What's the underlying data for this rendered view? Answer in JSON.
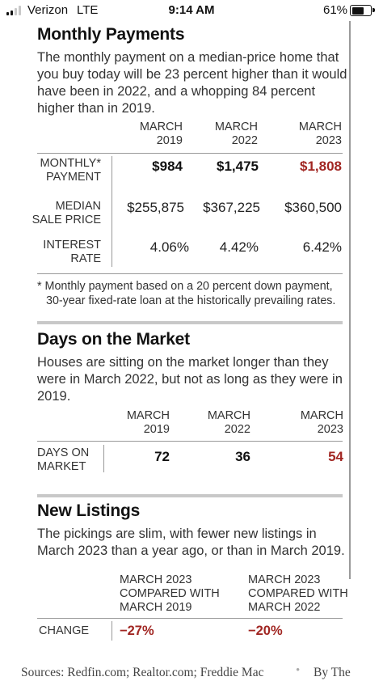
{
  "status_bar": {
    "carrier": "Verizon",
    "network": "LTE",
    "time": "9:14 AM",
    "battery": "61%",
    "battery_level": 0.61,
    "signal_bars": 2
  },
  "monthly": {
    "title": "Monthly Payments",
    "description": "The monthly payment on a median-price home that you buy today will be 23 percent higher than it would have been in 2022, and a whopping 84 percent higher than in 2019.",
    "columns": [
      {
        "line1": "MARCH",
        "line2": "2019"
      },
      {
        "line1": "MARCH",
        "line2": "2022"
      },
      {
        "line1": "MARCH",
        "line2": "2023"
      }
    ],
    "rows": [
      {
        "line1": "MONTHLY*",
        "line2": "PAYMENT",
        "values": [
          "$984",
          "$1,475",
          "$1,808"
        ]
      },
      {
        "line1": "MEDIAN",
        "line2": "SALE PRICE",
        "values": [
          "$255,875",
          "$367,225",
          "$360,500"
        ]
      },
      {
        "line1": "INTEREST",
        "line2": "RATE",
        "values": [
          "4.06%",
          "4.42%",
          "6.42%"
        ]
      }
    ],
    "footnote_line1": "* Monthly payment based on a 20 percent down payment,",
    "footnote_line2": "30-year fixed-rate loan at the historically prevailing rates."
  },
  "days": {
    "title": "Days on the Market",
    "description": "Houses are sitting on the market longer than they were in March 2022, but not as long as they were in 2019.",
    "columns": [
      {
        "line1": "MARCH",
        "line2": "2019"
      },
      {
        "line1": "MARCH",
        "line2": "2022"
      },
      {
        "line1": "MARCH",
        "line2": "2023"
      }
    ],
    "row": {
      "line1": "DAYS ON",
      "line2": "MARKET",
      "values": [
        "72",
        "36",
        "54"
      ]
    }
  },
  "listings": {
    "title": "New Listings",
    "description": "The pickings are slim, with fewer new listings in March 2023 than a year ago, or than in March 2019.",
    "columns": [
      {
        "line1": "MARCH 2023",
        "line2": "COMPARED WITH",
        "line3": "MARCH 2019"
      },
      {
        "line1": "MARCH 2023",
        "line2": "COMPARED WITH",
        "line3": "MARCH 2022"
      }
    ],
    "row": {
      "label": "CHANGE",
      "values": [
        "−27%",
        "−20%"
      ]
    }
  },
  "footer": {
    "sources": "Sources: Redfin.com; Realtor.com; Freddie Mac",
    "separator": "•",
    "credit": "By The"
  },
  "colors": {
    "highlight": "#a12622",
    "text": "#1a1a1a",
    "rule": "#c8c8c8"
  }
}
